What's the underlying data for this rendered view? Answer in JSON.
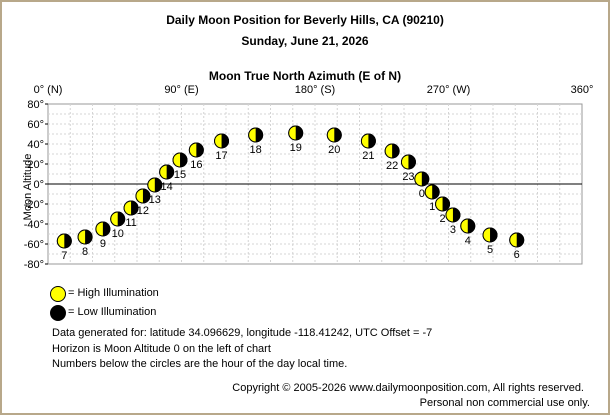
{
  "header": {
    "title": "Daily Moon Position for Beverly Hills, CA (90210)",
    "date": "Sunday, June 21, 2026"
  },
  "chart_data": {
    "type": "scatter",
    "title": "Moon True North Azimuth (E of N)",
    "xlabel": "Moon True North Azimuth (E of N)",
    "ylabel": "Moon Altitude",
    "xlim": [
      0,
      360
    ],
    "ylim": [
      -80,
      80
    ],
    "x_ticks": [
      {
        "value": 0,
        "label": "0° (N)"
      },
      {
        "value": 90,
        "label": "90° (E)"
      },
      {
        "value": 180,
        "label": "180° (S)"
      },
      {
        "value": 270,
        "label": "270° (W)"
      },
      {
        "value": 360,
        "label": "360°"
      }
    ],
    "y_ticks": [
      {
        "value": 80,
        "label": "80°"
      },
      {
        "value": 60,
        "label": "60°"
      },
      {
        "value": 40,
        "label": "40°"
      },
      {
        "value": 20,
        "label": "20°"
      },
      {
        "value": 0,
        "label": "0°"
      },
      {
        "value": -20,
        "label": "-20°"
      },
      {
        "value": -40,
        "label": "-40°"
      },
      {
        "value": -60,
        "label": "-60°"
      },
      {
        "value": -80,
        "label": "-80°"
      }
    ],
    "grid": true,
    "horizon_altitude": 0,
    "points": [
      {
        "hour": "7",
        "azimuth": 11,
        "altitude": -57
      },
      {
        "hour": "8",
        "azimuth": 25,
        "altitude": -53
      },
      {
        "hour": "9",
        "azimuth": 37,
        "altitude": -45
      },
      {
        "hour": "10",
        "azimuth": 47,
        "altitude": -35
      },
      {
        "hour": "11",
        "azimuth": 56,
        "altitude": -24
      },
      {
        "hour": "12",
        "azimuth": 64,
        "altitude": -12
      },
      {
        "hour": "13",
        "azimuth": 72,
        "altitude": -1
      },
      {
        "hour": "14",
        "azimuth": 80,
        "altitude": 12
      },
      {
        "hour": "15",
        "azimuth": 89,
        "altitude": 24
      },
      {
        "hour": "16",
        "azimuth": 100,
        "altitude": 34
      },
      {
        "hour": "17",
        "azimuth": 117,
        "altitude": 43
      },
      {
        "hour": "18",
        "azimuth": 140,
        "altitude": 49
      },
      {
        "hour": "19",
        "azimuth": 167,
        "altitude": 51
      },
      {
        "hour": "20",
        "azimuth": 193,
        "altitude": 49
      },
      {
        "hour": "21",
        "azimuth": 216,
        "altitude": 43
      },
      {
        "hour": "22",
        "azimuth": 232,
        "altitude": 33
      },
      {
        "hour": "23",
        "azimuth": 243,
        "altitude": 22
      },
      {
        "hour": "0",
        "azimuth": 252,
        "altitude": 5
      },
      {
        "hour": "1",
        "azimuth": 259,
        "altitude": -8
      },
      {
        "hour": "2",
        "azimuth": 266,
        "altitude": -20
      },
      {
        "hour": "3",
        "azimuth": 273,
        "altitude": -31
      },
      {
        "hour": "4",
        "azimuth": 283,
        "altitude": -42
      },
      {
        "hour": "5",
        "azimuth": 298,
        "altitude": -51
      },
      {
        "hour": "6",
        "azimuth": 316,
        "altitude": -56
      }
    ]
  },
  "legend": {
    "high": "= High Illumination",
    "low": "= Low Illumination"
  },
  "notes": {
    "line1": "Data generated for: latitude 34.096629, longitude -118.41242, UTC Offset = -7",
    "line2": "Horizon is Moon Altitude 0 on the left of chart",
    "line3": "Numbers below the circles are the hour of the day local time."
  },
  "footer": {
    "copyright": "Copyright © 2005-2026 www.dailymoonposition.com, All rights reserved.",
    "usage": "Personal non commercial use only."
  },
  "colors": {
    "frame": "#b8a88a",
    "moon_light": "#ffff00",
    "moon_dark": "#000000",
    "grid": "#d4d4d4"
  }
}
